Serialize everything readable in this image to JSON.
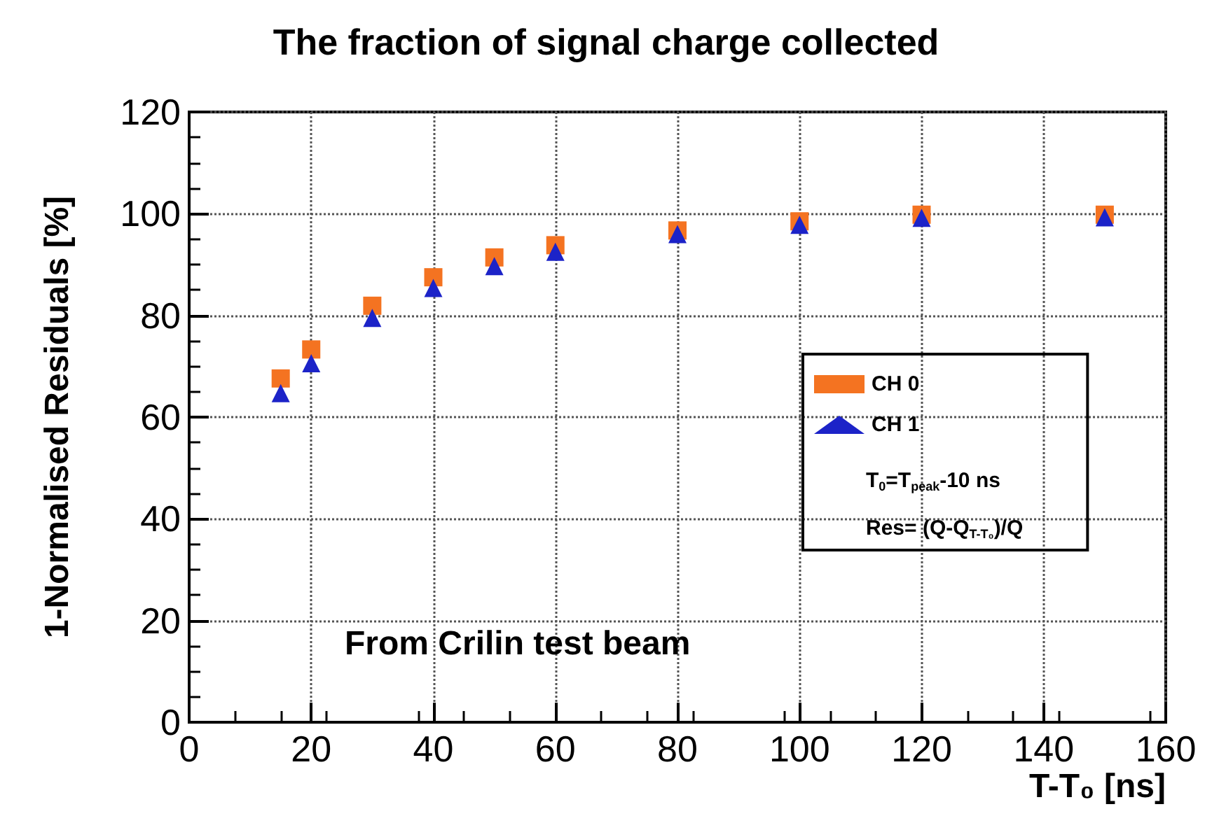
{
  "chart_data": {
    "type": "scatter",
    "title": "The fraction of signal charge collected",
    "xlabel": "T-T₀ [ns]",
    "ylabel": "1-Normalised Residuals [%]",
    "x": [
      15,
      20,
      30,
      40,
      50,
      60,
      80,
      100,
      120,
      150
    ],
    "series": [
      {
        "name": "CH 0",
        "color": "#f47321",
        "marker": "square",
        "values": [
          67.6,
          73.3,
          81.9,
          87.5,
          91.4,
          93.8,
          96.7,
          98.5,
          99.8,
          99.8
        ]
      },
      {
        "name": "CH 1",
        "color": "#1c23c8",
        "marker": "triangle",
        "values": [
          64.7,
          70.6,
          79.5,
          85.4,
          89.7,
          92.5,
          96.0,
          97.8,
          99.2,
          99.3
        ]
      }
    ],
    "annotations": [
      "T$_{0}$=T$_{peak}$-10 ns",
      "Res= (Q-Q$_{T-T₀}$)/Q",
      "From Crilin test beam"
    ],
    "xlim": [
      0,
      160
    ],
    "xticks": [
      0,
      20,
      40,
      60,
      80,
      100,
      120,
      140,
      160
    ],
    "ylim": [
      0,
      120
    ],
    "yticks": [
      0,
      20,
      40,
      60,
      80,
      100,
      120
    ],
    "grid": true,
    "legend": "right"
  }
}
